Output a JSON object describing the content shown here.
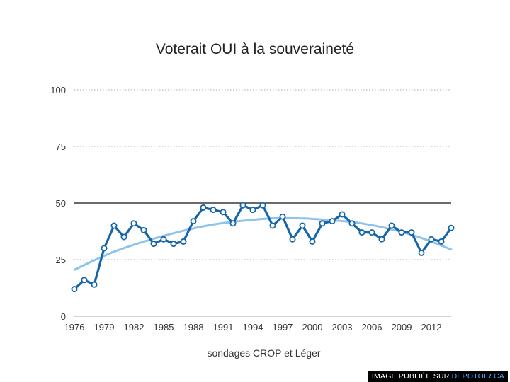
{
  "chart_data": {
    "type": "line",
    "title": "Voterait OUI à la souveraineté",
    "xlabel": "sondages CROP et Léger",
    "ylabel": "",
    "ylim": [
      0,
      100
    ],
    "xlim": [
      1976,
      2014
    ],
    "yticks": [
      0,
      25,
      50,
      75,
      100
    ],
    "xticks": [
      1976,
      1979,
      1982,
      1985,
      1988,
      1991,
      1994,
      1997,
      2000,
      2003,
      2006,
      2009,
      2012
    ],
    "grid": true,
    "reference_line": 50,
    "series": [
      {
        "x": [
          1976,
          1977,
          1978,
          1979,
          1980,
          1981,
          1982,
          1983,
          1984,
          1985,
          1986,
          1987,
          1988,
          1989,
          1990,
          1991,
          1992,
          1993,
          1994,
          1995,
          1996,
          1997,
          1998,
          1999,
          2000,
          2001,
          2002,
          2003,
          2004,
          2005,
          2006,
          2007,
          2008,
          2009,
          2010,
          2011,
          2012,
          2013,
          2014
        ],
        "values": [
          12,
          16,
          14,
          30,
          40,
          35,
          41,
          38,
          32,
          34,
          32,
          33,
          42,
          48,
          47,
          46,
          41,
          49,
          47,
          49,
          40,
          44,
          34,
          40,
          33,
          41,
          42,
          45,
          41,
          37,
          37,
          34,
          40,
          37,
          37,
          28,
          34,
          33,
          39
        ],
        "color": "#1565a8"
      }
    ],
    "trend": {
      "x": [
        1976,
        1980,
        1985,
        1990,
        1995,
        1997,
        2000,
        2005,
        2010,
        2014
      ],
      "values": [
        20.5,
        28.5,
        35.5,
        40.5,
        43.0,
        43.3,
        43.0,
        41.0,
        36.0,
        29.5
      ],
      "color": "#8ec3ea"
    }
  },
  "credit": {
    "prefix": "IMAGE PUBLIÉE SUR ",
    "site": "DEPOTOIR.CA"
  }
}
